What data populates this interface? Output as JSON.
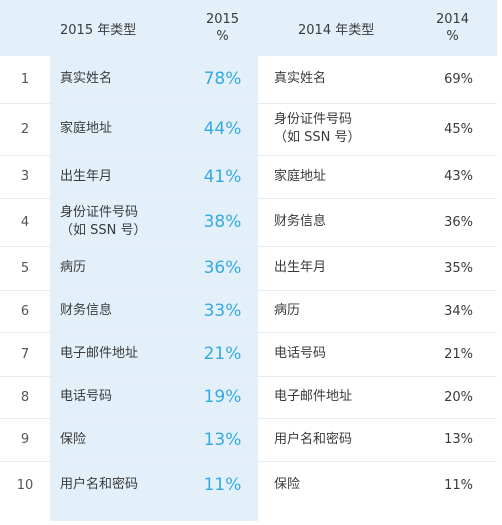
{
  "headers": {
    "type_2015": "2015 年类型",
    "pct_2015": [
      "2015",
      "%"
    ],
    "type_2014": "2014 年类型",
    "pct_2014": [
      "2014",
      "%"
    ]
  },
  "rows": [
    {
      "rank": "1",
      "type_2015": [
        "真实姓名"
      ],
      "pct_2015": "78%",
      "type_2014": [
        "真实姓名"
      ],
      "pct_2014": "69%"
    },
    {
      "rank": "2",
      "type_2015": [
        "家庭地址"
      ],
      "pct_2015": "44%",
      "type_2014": [
        "身份证件号码",
        "（如 SSN 号）"
      ],
      "pct_2014": "45%"
    },
    {
      "rank": "3",
      "type_2015": [
        "出生年月"
      ],
      "pct_2015": "41%",
      "type_2014": [
        "家庭地址"
      ],
      "pct_2014": "43%"
    },
    {
      "rank": "4",
      "type_2015": [
        "身份证件号码",
        "（如 SSN 号）"
      ],
      "pct_2015": "38%",
      "type_2014": [
        "财务信息"
      ],
      "pct_2014": "36%"
    },
    {
      "rank": "5",
      "type_2015": [
        "病历"
      ],
      "pct_2015": "36%",
      "type_2014": [
        "出生年月"
      ],
      "pct_2014": "35%"
    },
    {
      "rank": "6",
      "type_2015": [
        "财务信息"
      ],
      "pct_2015": "33%",
      "type_2014": [
        "病历"
      ],
      "pct_2014": "34%"
    },
    {
      "rank": "7",
      "type_2015": [
        "电子邮件地址"
      ],
      "pct_2015": "21%",
      "type_2014": [
        "电话号码"
      ],
      "pct_2014": "21%"
    },
    {
      "rank": "8",
      "type_2015": [
        "电话号码"
      ],
      "pct_2015": "19%",
      "type_2014": [
        "电子邮件地址"
      ],
      "pct_2014": "20%"
    },
    {
      "rank": "9",
      "type_2015": [
        "保险"
      ],
      "pct_2015": "13%",
      "type_2014": [
        "用户名和密码"
      ],
      "pct_2014": "13%"
    },
    {
      "rank": "10",
      "type_2015": [
        "用户名和密码"
      ],
      "pct_2015": "11%",
      "type_2014": [
        "保险"
      ],
      "pct_2014": "11%"
    }
  ],
  "colors": {
    "highlight_bg": "#e3f0fa",
    "accent_pct": "#35a9e1",
    "text": "#3a3a3a"
  }
}
